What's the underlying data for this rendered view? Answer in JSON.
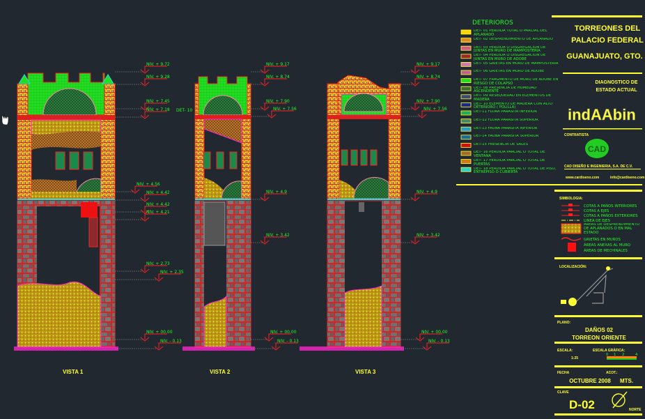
{
  "views": [
    {
      "title": "VISTA 1",
      "levels": [
        "NIV. + 9.72",
        "NIV. + 9.28",
        "NIV. + 7.45",
        "NIV. + 7.18",
        "NIV. + 4.56",
        "NIV. + 4.42",
        "NIV. + 4.42",
        "NIV. + 4.21",
        "NIV. + 2.73",
        "NIV. + 2.35",
        "NIV. + 00.00",
        "NIV. - 0.13"
      ]
    },
    {
      "title": "VISTA 2",
      "side_label": "DET- 10",
      "levels": [
        "NIV. + 9.17",
        "NIV. + 8.74",
        "NIV. + 7.90",
        "NIV. + 7.56",
        "NIV. + 4.9",
        "NIV. + 3.42",
        "NIV. + 00.00",
        "NIV. - 0.13"
      ]
    },
    {
      "title": "VISTA 3",
      "levels": [
        "NIV. + 9.17",
        "NIV. + 8.74",
        "NIV. + 7.90",
        "NIV. + 7.56",
        "NIV. + 4.9",
        "NIV. + 3.42",
        "NIV. + 00.00",
        "NIV. - 0.13"
      ]
    }
  ],
  "legend": {
    "title": "DETERIOROS",
    "items": [
      {
        "label": "DET- 01 PERDIDA TOTAL O PARCIAL DEL APLANADO",
        "color": "#ffd200"
      },
      {
        "label": "DET- 02 DESPRENDIMIENTO DE APLANADO",
        "color": "#e08a2a"
      },
      {
        "label": "DET- 03 PERDIDA O DISGREGACIÓN DE JUNTAS EN MURO DE MAMPOSTERIA",
        "color": "#d05a8a"
      },
      {
        "label": "DET- 04 PERDIDA O DISGREGACIÓN DE JUNTAS EN MURO DE ADOBE",
        "color": "#9a2a2a"
      },
      {
        "label": "DET- 05 GRIETAS EN MURO DE MAMPOSTERIA",
        "color": "#d07ab0"
      },
      {
        "label": "DET- 06 GRIETAS EN MURO DE ADOBE",
        "color": "#c06090"
      },
      {
        "label": "DET- 07 FRAGMENTO DE MURO DE ADOBE EN RIESGO DE COLAPSO",
        "color": "#22dd22"
      },
      {
        "label": "DET- 08 PRESENCIA DE HUMEDAD ASCENDENTE",
        "color": "#3a6a3a"
      },
      {
        "label": "DET- 09 RESEQUEDAD EN ELEMENTOS DE MADERA",
        "color": "#3a4a7a"
      },
      {
        "label": "DET- 10 ELEMENTO DE MADERA CON ALTO DETERIORO ( POLILLA)",
        "color": "#1a2a8a"
      },
      {
        "label": "DET-11 FLORA PARASITA INFERIOR",
        "color": "#22aa55"
      },
      {
        "label": "DET-12 FLORA PARASITA SUPERIOR",
        "color": "#4a8a6a"
      },
      {
        "label": "DET-13 FAUNA PARASITA INFERIOR",
        "color": "#2a9ad0"
      },
      {
        "label": "DET-14 FAUNA PARASITA SUPERIOR",
        "color": "#1a6a9a"
      },
      {
        "label": "DET-15 PRESENCIA DE SALES",
        "color": "#cc1111"
      },
      {
        "label": "DET- 16 PERDIDA PARCIAL O TOTAL DE VENTANA",
        "color": "#a06a2a"
      },
      {
        "label": "DET- 17 PERDIDA PARCIAL O TOTAL DE PUERTAS",
        "color": "#d07a1a"
      },
      {
        "label": "DET- 18 PERDIDA PARCIAL O TOTAL DE PISO, ENTREPISO O CUBIERTA",
        "color": "#2ad0d0"
      }
    ]
  },
  "title_block": {
    "project_line1": "TORREONES DEL",
    "project_line2": "PALACIO FEDERAL",
    "location": "GUANAJUATO, GTO.",
    "subtitle_line1": "DIAGNOSTICO DE",
    "subtitle_line2": "ESTADO ACTUAL",
    "client_logo": "indAAbin",
    "contractor_label": "CONTRATISTA",
    "contractor_logo": "CAD",
    "contractor_name": "CAD DISEÑO E INGENIERIA, S.A. DE C.V.",
    "website": "www.cardiseno.com",
    "email": "info@cardiseno.com",
    "symbology_label": "SIMBOLOGIA:",
    "symbology": [
      "COTAS A PAÑOS INTERIORES",
      "COTAS A EJES",
      "COTAS A PAÑOS EXTERIORES",
      "LINEA DE EJES",
      "AREAS DE DESPRENDIMIENTO DE APLANADOS O EN MAL ESTADO",
      "GRIETAS EN MUROS",
      "ÁREAS ANEXAS AL MURO",
      "ÁREAS DE MECHINALES"
    ],
    "location_label": "LOCALIZACIÓN:",
    "plan_label": "PLANO:",
    "plan_line1": "DAÑOS 02",
    "plan_line2": "TORREON ORIENTE",
    "scale_label": "ESCALA:",
    "scale_value": "1:25",
    "graphic_scale_label": "ESCALA GRÁFICA:",
    "graphic_scale_ticks": [
      "0",
      "1",
      "2",
      "4"
    ],
    "date_label": "FECHA",
    "date_value": "OCTUBRE 2008",
    "units_label": "ACOT.:",
    "units_value": "MTS.",
    "key_label": "CLAVE",
    "key_value": "D-02",
    "north_label": "NORTE"
  },
  "colors": {
    "background": "#212830",
    "accent_yellow": "#ffff33",
    "dim_red": "#ff2222",
    "text_green": "#22ff22",
    "magenta": "#ff22cc"
  }
}
